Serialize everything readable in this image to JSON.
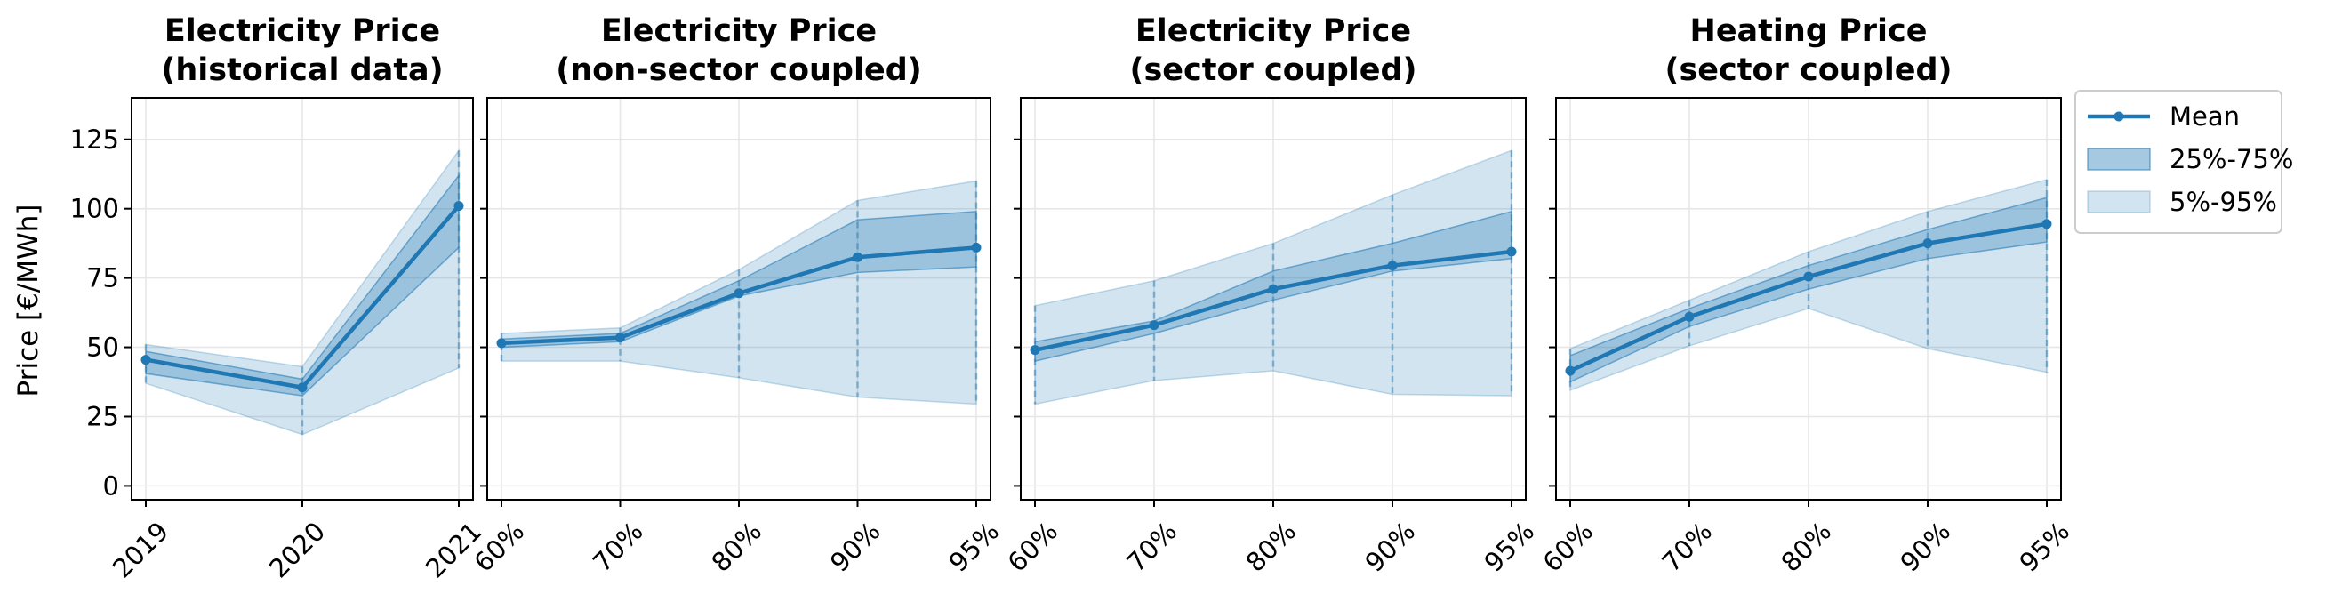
{
  "ylabel": "Price [€/MWh]",
  "colors": {
    "line": "#1f77b4",
    "iqr_fill": "#1f77b4",
    "outer_fill": "#1f77b4",
    "grid": "#e6e6e6",
    "axis": "#000000"
  },
  "legend": {
    "placement": "outside right",
    "items": [
      {
        "label": "Mean",
        "kind": "line"
      },
      {
        "label": "25%-75%",
        "kind": "iqr"
      },
      {
        "label": "5%-95%",
        "kind": "outer"
      }
    ]
  },
  "chart_data": [
    {
      "type": "area",
      "title": "Electricity Price\n(historical data)",
      "categories": [
        "2019",
        "2020",
        "2021"
      ],
      "ylim": [
        -5,
        140
      ],
      "yticks": [
        0,
        25,
        50,
        75,
        100,
        125
      ],
      "grid": true,
      "series": [
        {
          "name": "Mean",
          "values": [
            45.5,
            35.5,
            101
          ]
        },
        {
          "name": "25%-75%",
          "lower": [
            40.5,
            32.5,
            86
          ],
          "upper": [
            48.5,
            38.5,
            112
          ]
        },
        {
          "name": "5%-95%",
          "lower": [
            37,
            18.5,
            42.5
          ],
          "upper": [
            51,
            43,
            121
          ]
        }
      ]
    },
    {
      "type": "area",
      "title": "Electricity Price\n(non-sector coupled)",
      "categories": [
        "60%",
        "70%",
        "80%",
        "90%",
        "95%"
      ],
      "ylim": [
        -5,
        140
      ],
      "grid": true,
      "series": [
        {
          "name": "Mean",
          "values": [
            51.5,
            53.5,
            69.5,
            82.5,
            86
          ]
        },
        {
          "name": "25%-75%",
          "lower": [
            50,
            52,
            68.5,
            77,
            79
          ],
          "upper": [
            53,
            55,
            74,
            96,
            99
          ]
        },
        {
          "name": "5%-95%",
          "lower": [
            45,
            45,
            39,
            32,
            29.5
          ],
          "upper": [
            55,
            57,
            78,
            103,
            110
          ]
        }
      ]
    },
    {
      "type": "area",
      "title": "Electricity Price\n(sector coupled)",
      "categories": [
        "60%",
        "70%",
        "80%",
        "90%",
        "95%"
      ],
      "ylim": [
        -5,
        140
      ],
      "grid": true,
      "series": [
        {
          "name": "Mean",
          "values": [
            49,
            58,
            71,
            79.5,
            84.5
          ]
        },
        {
          "name": "25%-75%",
          "lower": [
            45,
            55,
            67,
            77.5,
            82
          ],
          "upper": [
            52,
            59.5,
            77.5,
            87.5,
            99
          ]
        },
        {
          "name": "5%-95%",
          "lower": [
            29.5,
            38,
            41.5,
            33,
            32.5
          ],
          "upper": [
            65,
            74,
            87.5,
            105,
            121
          ]
        }
      ]
    },
    {
      "type": "area",
      "title": "Heating Price\n(sector coupled)",
      "categories": [
        "60%",
        "70%",
        "80%",
        "90%",
        "95%"
      ],
      "ylim": [
        -5,
        140
      ],
      "grid": true,
      "series": [
        {
          "name": "Mean",
          "values": [
            41.5,
            61,
            75.5,
            87.5,
            94.5
          ]
        },
        {
          "name": "25%-75%",
          "lower": [
            37.5,
            57.5,
            71,
            82,
            88
          ],
          "upper": [
            47,
            64,
            79.5,
            92.5,
            104
          ]
        },
        {
          "name": "5%-95%",
          "lower": [
            34.5,
            50.5,
            64,
            49.5,
            41
          ],
          "upper": [
            49.5,
            67,
            84.5,
            99,
            110.5
          ]
        }
      ]
    }
  ]
}
